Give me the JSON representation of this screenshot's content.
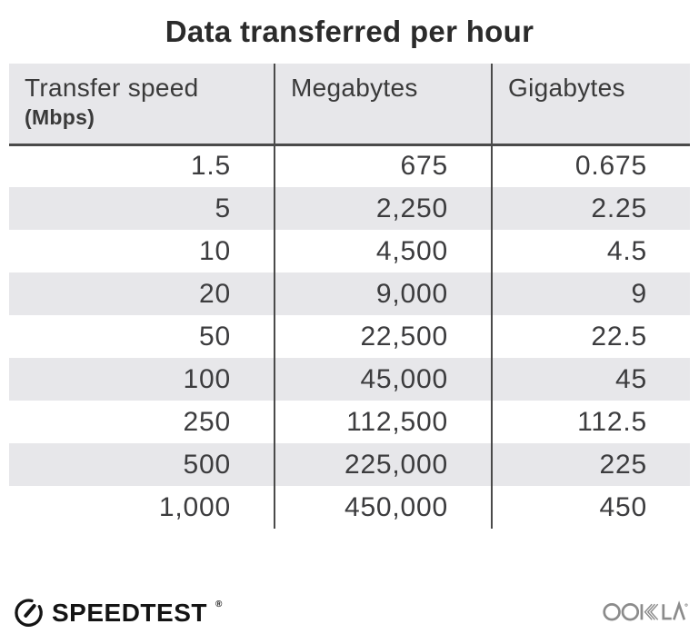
{
  "title": "Data transferred per hour",
  "table": {
    "columns": [
      {
        "label": "Transfer speed",
        "sublabel": "(Mbps)"
      },
      {
        "label": "Megabytes"
      },
      {
        "label": "Gigabytes"
      }
    ],
    "rows": [
      [
        "1.5",
        "675",
        "0.675"
      ],
      [
        "5",
        "2,250",
        "2.25"
      ],
      [
        "10",
        "4,500",
        "4.5"
      ],
      [
        "20",
        "9,000",
        "9"
      ],
      [
        "50",
        "22,500",
        "22.5"
      ],
      [
        "100",
        "45,000",
        "45"
      ],
      [
        "250",
        "112,500",
        "112.5"
      ],
      [
        "500",
        "225,000",
        "225"
      ],
      [
        "1,000",
        "450,000",
        "450"
      ]
    ]
  },
  "footer": {
    "speedtest_label": "SPEEDTEST",
    "speedtest_trademark": "®",
    "ookla_label": "OOKLA"
  },
  "colors": {
    "header_background": "#e7e7ea",
    "row_alt_background": "#e7e7ea",
    "divider": "#4a4a4a",
    "title_text": "#2b2b2b",
    "body_text": "#3c3c3e",
    "speedtest_black": "#141414",
    "ookla_gray": "#8b8b8b"
  },
  "chart_data": {
    "type": "table",
    "title": "Data transferred per hour",
    "columns": [
      "Transfer speed (Mbps)",
      "Megabytes",
      "Gigabytes"
    ],
    "rows": [
      [
        1.5,
        675,
        0.675
      ],
      [
        5,
        2250,
        2.25
      ],
      [
        10,
        4500,
        4.5
      ],
      [
        20,
        9000,
        9
      ],
      [
        50,
        22500,
        22.5
      ],
      [
        100,
        45000,
        45
      ],
      [
        250,
        112500,
        112.5
      ],
      [
        500,
        225000,
        225
      ],
      [
        1000,
        450000,
        450
      ]
    ],
    "layout": {
      "header_shaded": true,
      "zebra_stripes": true,
      "stripe_start_row": 2
    }
  }
}
